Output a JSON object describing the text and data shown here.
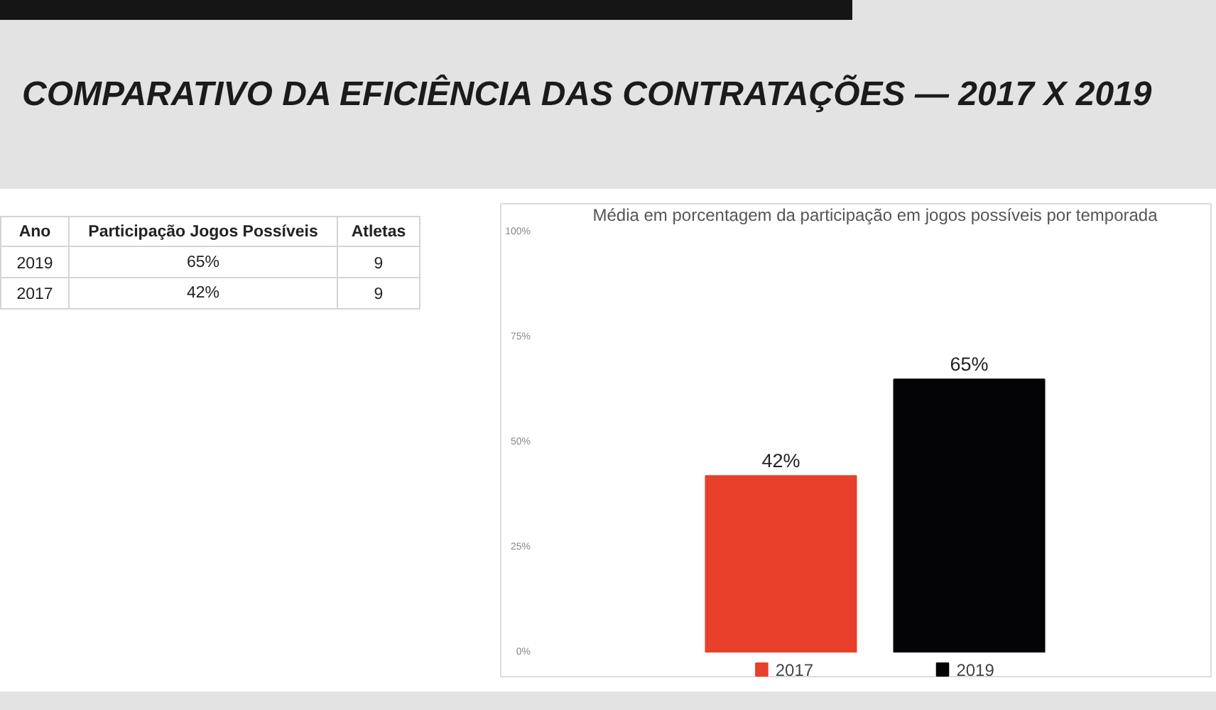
{
  "chart_data": [
    {
      "type": "other",
      "title": "COMPARATIVO DA EFICIÊNCIA DAS CONTRATAÇÕES — 2017 X 2019",
      "annotations": [
        "Ano",
        "Participação Jogos Possíveis",
        "Atletas",
        "2019",
        "65%",
        "9",
        "2017",
        "42%",
        "9"
      ]
    },
    {
      "type": "bar",
      "title": "Média em porcentagem da participação em jogos possíveis por temporada",
      "categories": [
        null
      ],
      "series": [
        {
          "name": "2017",
          "color": "#e8402b",
          "values": [
            42
          ],
          "value_labels": [
            "42%"
          ]
        },
        {
          "name": "2019",
          "color": "#040407",
          "values": [
            65
          ],
          "value_labels": [
            "65%"
          ]
        }
      ],
      "ylim": [
        0,
        100
      ],
      "yticks": [
        {
          "value": 0,
          "label": "0%"
        },
        {
          "value": 25,
          "label": "25%"
        },
        {
          "value": 50,
          "label": "50%"
        },
        {
          "value": 75,
          "label": "75%"
        },
        {
          "value": 100,
          "label": "100%"
        }
      ],
      "legend": "bottom",
      "tick_labels": "y"
    }
  ]
}
